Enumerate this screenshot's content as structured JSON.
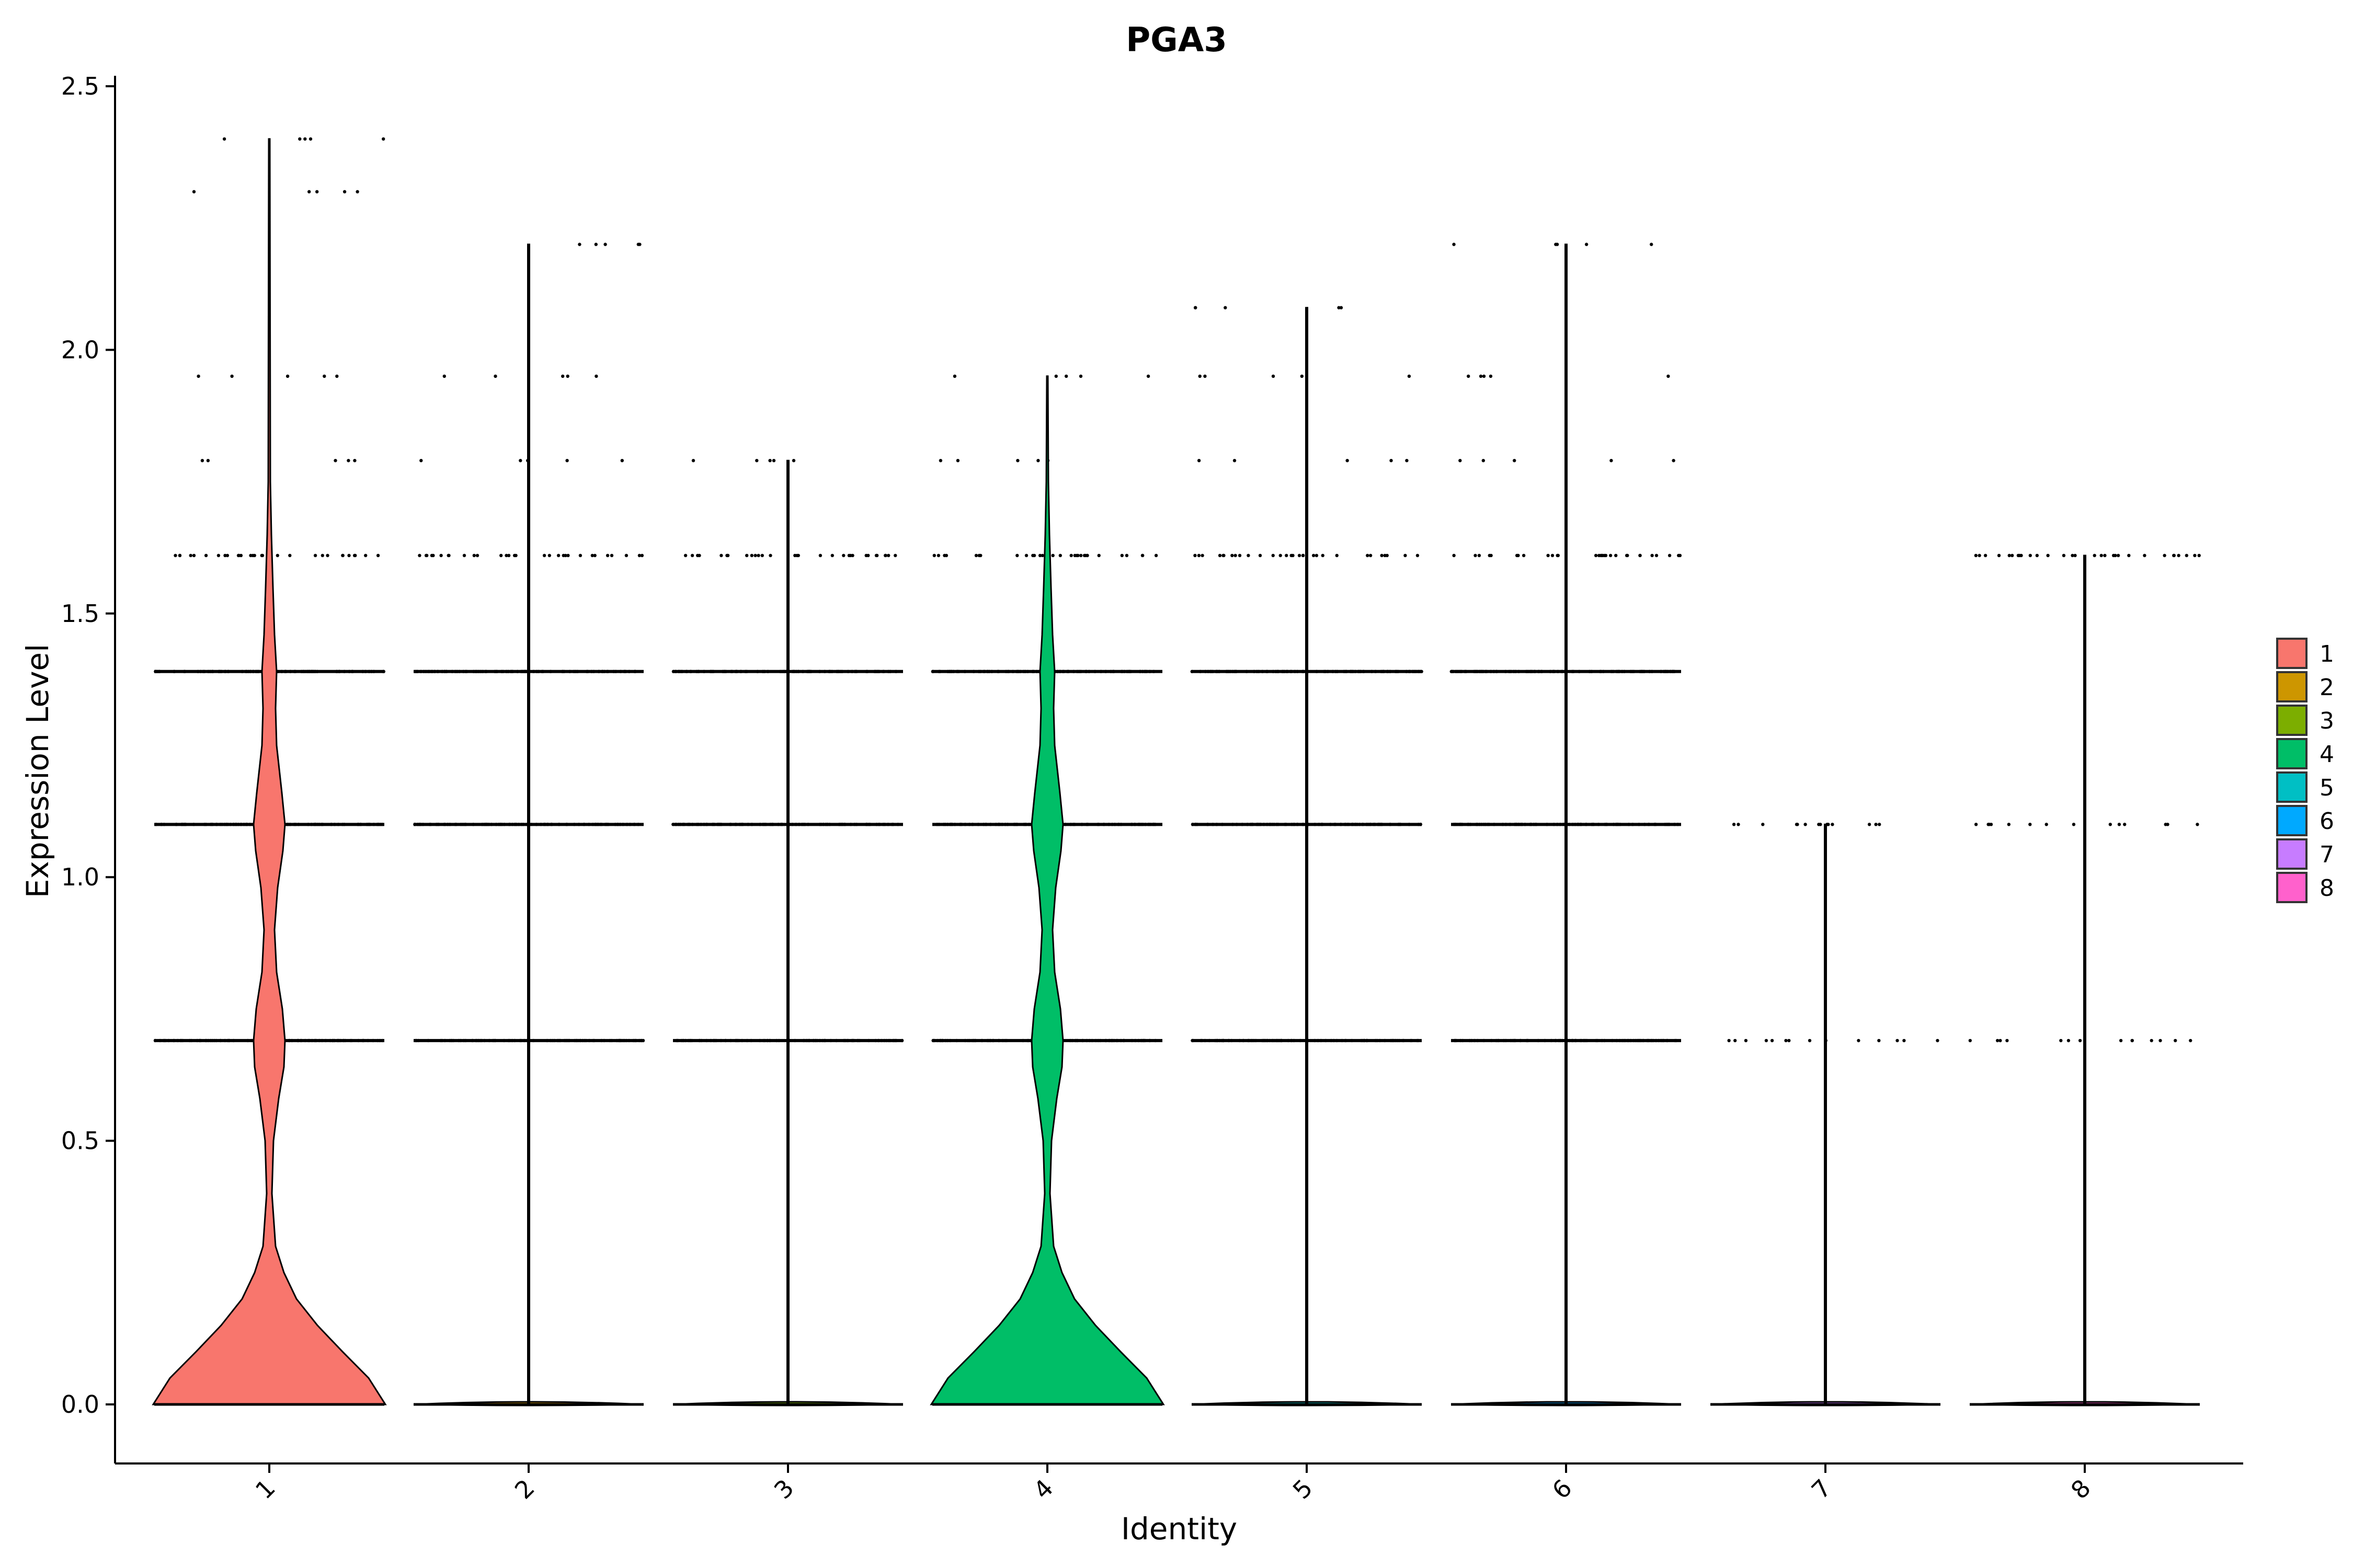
{
  "chart_data": {
    "type": "violin",
    "title": "PGA3",
    "xlabel": "Identity",
    "ylabel": "Expression Level",
    "ylim": [
      -0.12,
      2.52
    ],
    "yticks": [
      "0.0",
      "0.5",
      "1.0",
      "1.5",
      "2.0",
      "2.5"
    ],
    "ytick_values": [
      0,
      0.5,
      1.0,
      1.5,
      2.0,
      2.5
    ],
    "categories": [
      "1",
      "2",
      "3",
      "4",
      "5",
      "6",
      "7",
      "8"
    ],
    "colors": [
      "#F8766D",
      "#CD9600",
      "#7CAE00",
      "#00BE67",
      "#00BFC4",
      "#00A9FF",
      "#C77CFF",
      "#FF61CC"
    ],
    "legend": {
      "position": "right",
      "entries": [
        "1",
        "2",
        "3",
        "4",
        "5",
        "6",
        "7",
        "8"
      ]
    },
    "grid": false,
    "series": [
      {
        "name": "1",
        "max": 2.4,
        "shape": "wide-bimodal",
        "outlier_levels": [
          2.4,
          2.3,
          1.95,
          1.79,
          1.61,
          1.39,
          1.1,
          0.69
        ]
      },
      {
        "name": "2",
        "max": 2.2,
        "shape": "flat",
        "outlier_levels": [
          2.2,
          1.95,
          1.79,
          1.61,
          1.39,
          1.1,
          0.69
        ]
      },
      {
        "name": "3",
        "max": 1.79,
        "shape": "flat",
        "outlier_levels": [
          1.79,
          1.61,
          1.39,
          1.1,
          0.69
        ]
      },
      {
        "name": "4",
        "max": 1.95,
        "shape": "wide-bimodal",
        "outlier_levels": [
          1.95,
          1.79,
          1.61,
          1.39,
          1.1,
          0.69
        ]
      },
      {
        "name": "5",
        "max": 2.08,
        "shape": "flat",
        "outlier_levels": [
          2.08,
          1.95,
          1.79,
          1.61,
          1.39,
          1.1,
          0.69
        ]
      },
      {
        "name": "6",
        "max": 2.2,
        "shape": "flat",
        "outlier_levels": [
          2.2,
          1.95,
          1.79,
          1.61,
          1.39,
          1.1,
          0.69
        ]
      },
      {
        "name": "7",
        "max": 1.1,
        "shape": "flat",
        "outlier_levels": [
          1.1,
          0.69
        ]
      },
      {
        "name": "8",
        "max": 1.61,
        "shape": "flat",
        "outlier_levels": [
          1.61,
          1.1,
          0.69
        ]
      }
    ]
  }
}
